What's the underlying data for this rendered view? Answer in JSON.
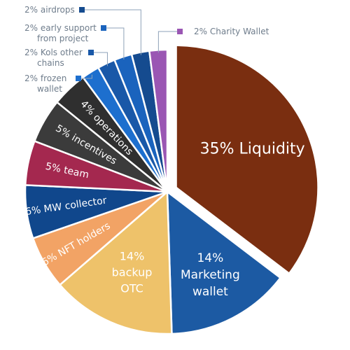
{
  "chart_data": {
    "type": "pie",
    "slices": [
      {
        "label": "35% Liquidity",
        "value": 35,
        "color": "#7a2e10",
        "lines": [
          "35% Liquidity"
        ]
      },
      {
        "label": "14% Marketing wallet",
        "value": 14,
        "color": "#1c5aa3",
        "lines": [
          "14%",
          "Marketing",
          "wallet"
        ]
      },
      {
        "label": "14% backup OTC",
        "value": 14,
        "color": "#eec26a",
        "lines": [
          "14%",
          "backup",
          "OTC"
        ]
      },
      {
        "label": "6% NFT holders",
        "value": 6,
        "color": "#f2a365",
        "lines": [
          "6% NFT holders"
        ]
      },
      {
        "label": "6% MW collector",
        "value": 6,
        "color": "#10478c",
        "lines": [
          "6% MW collector"
        ]
      },
      {
        "label": "5% team",
        "value": 5,
        "color": "#a4284f",
        "lines": [
          "5% team"
        ]
      },
      {
        "label": "5% incentives",
        "value": 5,
        "color": "#3b3b3b",
        "lines": [
          "5% incentives"
        ]
      },
      {
        "label": "4% operations",
        "value": 4,
        "color": "#2f2f2f",
        "lines": [
          "4% operations"
        ]
      },
      {
        "label": "2% frozen wallet",
        "value": 2,
        "color": "#1d6fce",
        "lines": [
          "2% frozen",
          "wallet"
        ]
      },
      {
        "label": "2% Kols other chains",
        "value": 2,
        "color": "#1958a8",
        "lines": [
          "2% Kols other",
          "chains"
        ]
      },
      {
        "label": "2% early support from project",
        "value": 2,
        "color": "#1a63bd",
        "lines": [
          "2% early support",
          "from project"
        ]
      },
      {
        "label": "2% airdrops",
        "value": 2,
        "color": "#154b8f",
        "lines": [
          "2% airdrops"
        ]
      },
      {
        "label": "2% Charity Wallet",
        "value": 2,
        "color": "#9a56b3",
        "lines": [
          "2% Charity Wallet"
        ]
      }
    ]
  }
}
